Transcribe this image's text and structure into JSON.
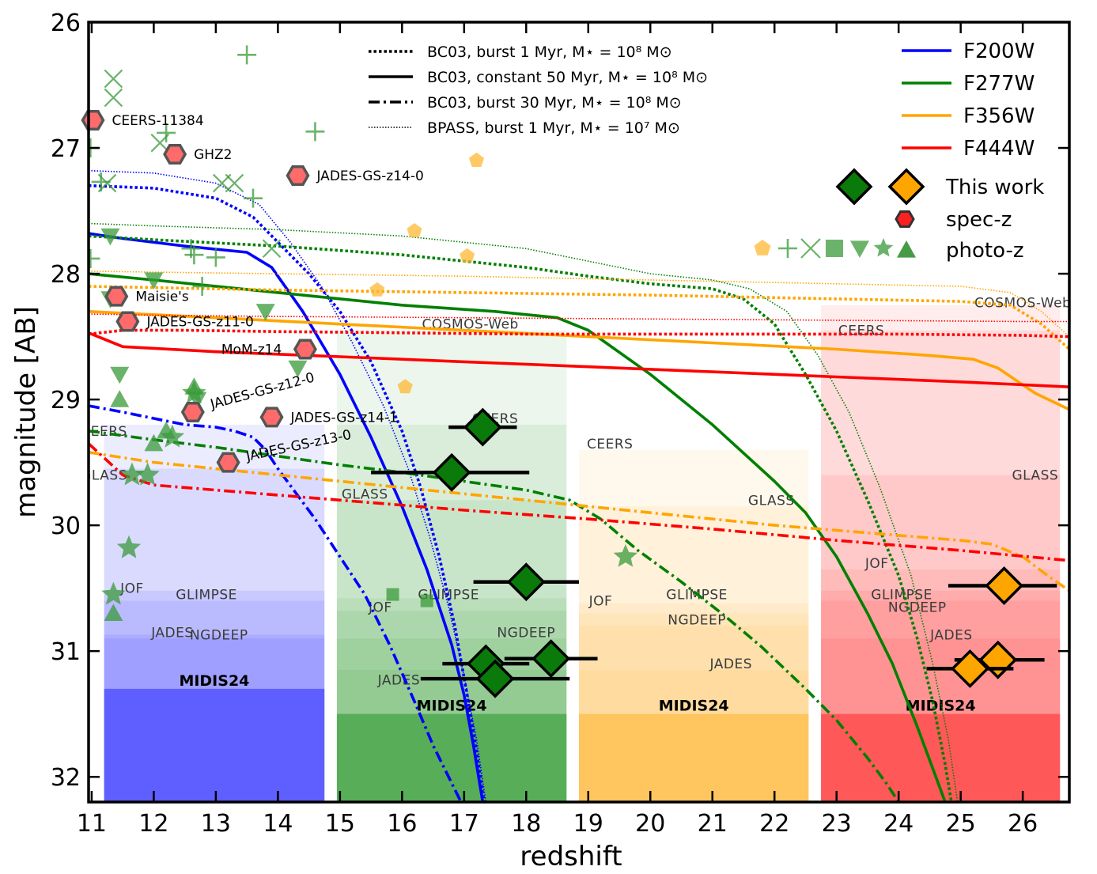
{
  "chart_data": {
    "type": "line",
    "xlabel": "redshift",
    "ylabel": "magnitude [AB]",
    "xlim": [
      10.95,
      26.75
    ],
    "ylim": [
      32.2,
      26
    ],
    "xticks": [
      11,
      12,
      13,
      14,
      15,
      16,
      17,
      18,
      19,
      20,
      21,
      22,
      23,
      24,
      25,
      26
    ],
    "yticks": [
      26,
      27,
      28,
      29,
      30,
      31,
      32
    ],
    "colors": {
      "F200W": "#0000ff",
      "F277W": "#008000",
      "F356W": "#ffa500",
      "F444W": "#ff0000"
    },
    "filter_regions": [
      {
        "filter": "F200W",
        "x0": 11.2,
        "x1": 14.75,
        "midis_depth": 31.3,
        "labels": [
          {
            "text": "CEERS",
            "x": 11.2,
            "y": 29.25
          },
          {
            "text": "GLASS",
            "x": 11.2,
            "y": 29.6
          },
          {
            "text": "JOF",
            "x": 11.65,
            "y": 30.5
          },
          {
            "text": "GLIMPSE",
            "x": 12.85,
            "y": 30.55
          },
          {
            "text": "JADES",
            "x": 12.3,
            "y": 30.85
          },
          {
            "text": "NGDEEP",
            "x": 13.05,
            "y": 30.87
          }
        ],
        "depths": [
          29.2,
          29.55,
          30.52,
          30.6,
          30.87,
          30.9
        ]
      },
      {
        "filter": "F277W",
        "x0": 14.95,
        "x1": 18.65,
        "midis_depth": 31.5,
        "labels": [
          {
            "text": "COSMOS-Web",
            "x": 17.1,
            "y": 28.4
          },
          {
            "text": "CEERS",
            "x": 17.5,
            "y": 29.15
          },
          {
            "text": "GLASS",
            "x": 15.4,
            "y": 29.75
          },
          {
            "text": "JOF",
            "x": 15.65,
            "y": 30.65
          },
          {
            "text": "GLIMPSE",
            "x": 16.75,
            "y": 30.55
          },
          {
            "text": "NGDEEP",
            "x": 18.0,
            "y": 30.85
          },
          {
            "text": "JADES",
            "x": 15.95,
            "y": 31.23
          }
        ],
        "depths": [
          28.45,
          29.2,
          29.8,
          30.58,
          30.68,
          30.9,
          31.15
        ]
      },
      {
        "filter": "F356W",
        "x0": 18.85,
        "x1": 22.55,
        "midis_depth": 31.5,
        "labels": [
          {
            "text": "CEERS",
            "x": 19.35,
            "y": 29.35
          },
          {
            "text": "GLASS",
            "x": 21.95,
            "y": 29.8
          },
          {
            "text": "JOF",
            "x": 19.2,
            "y": 30.6
          },
          {
            "text": "GLIMPSE",
            "x": 20.75,
            "y": 30.55
          },
          {
            "text": "NGDEEP",
            "x": 20.75,
            "y": 30.75
          },
          {
            "text": "JADES",
            "x": 21.3,
            "y": 31.1
          }
        ],
        "depths": [
          29.4,
          29.85,
          30.62,
          30.7,
          30.8,
          31.15
        ]
      },
      {
        "filter": "F444W",
        "x0": 22.75,
        "x1": 26.6,
        "midis_depth": 31.5,
        "labels": [
          {
            "text": "COSMOS-Web",
            "x": 26.0,
            "y": 28.23
          },
          {
            "text": "CEERS",
            "x": 23.4,
            "y": 28.45
          },
          {
            "text": "GLASS",
            "x": 26.2,
            "y": 29.6
          },
          {
            "text": "JOF",
            "x": 23.65,
            "y": 30.3
          },
          {
            "text": "GLIMPSE",
            "x": 24.05,
            "y": 30.55
          },
          {
            "text": "NGDEEP",
            "x": 24.3,
            "y": 30.65
          },
          {
            "text": "JADES",
            "x": 24.85,
            "y": 30.87
          }
        ],
        "depths": [
          28.25,
          28.45,
          29.6,
          30.35,
          30.52,
          30.6,
          30.9
        ]
      }
    ],
    "midis_label": "MIDIS24",
    "series": [
      {
        "name": "F200W constant 50 Myr",
        "filter": "F200W",
        "style": "solid",
        "x": [
          10.95,
          11.5,
          12.5,
          13.5,
          13.9,
          14.4,
          15.0,
          15.5,
          16.0,
          16.4,
          16.8,
          17.0,
          17.15,
          17.25,
          17.3
        ],
        "y": [
          27.68,
          27.72,
          27.78,
          27.83,
          27.95,
          28.3,
          28.8,
          29.3,
          29.85,
          30.35,
          30.95,
          31.35,
          31.75,
          32.05,
          32.2
        ]
      },
      {
        "name": "F200W burst 1 Myr",
        "filter": "F200W",
        "style": "dotted",
        "x": [
          10.95,
          12.0,
          13.0,
          13.6,
          14.0,
          14.5,
          15.0,
          15.5,
          16.0,
          16.3,
          16.6,
          16.85,
          17.05,
          17.2,
          17.32
        ],
        "y": [
          27.3,
          27.32,
          27.4,
          27.55,
          27.75,
          28.0,
          28.3,
          28.7,
          29.25,
          29.7,
          30.25,
          30.8,
          31.35,
          31.8,
          32.2
        ]
      },
      {
        "name": "F200W BPASS burst 1 Myr",
        "filter": "F200W",
        "style": "fine-dotted",
        "x": [
          10.95,
          12.0,
          13.0,
          13.7,
          14.2,
          14.7,
          15.2,
          15.7,
          16.1,
          16.45,
          16.75,
          17.0,
          17.2,
          17.35
        ],
        "y": [
          27.18,
          27.2,
          27.28,
          27.45,
          27.75,
          28.1,
          28.55,
          29.05,
          29.55,
          30.1,
          30.65,
          31.2,
          31.7,
          32.2
        ]
      },
      {
        "name": "F200W burst 30 Myr",
        "filter": "F200W",
        "style": "dashdot",
        "x": [
          10.95,
          11.5,
          12.0,
          12.5,
          13.0,
          13.3,
          13.6,
          13.8,
          14.0,
          14.3,
          14.6,
          15.0,
          15.4,
          15.8,
          16.2,
          16.5,
          16.75,
          16.95
        ],
        "y": [
          29.05,
          29.1,
          29.15,
          29.2,
          29.22,
          29.25,
          29.3,
          29.4,
          29.55,
          29.75,
          29.95,
          30.25,
          30.55,
          30.95,
          31.4,
          31.75,
          32.0,
          32.2
        ]
      },
      {
        "name": "F277W constant 50 Myr",
        "filter": "F277W",
        "style": "solid",
        "x": [
          10.95,
          12.0,
          14.0,
          16.0,
          17.5,
          18.5,
          19.0,
          20.0,
          21.0,
          22.0,
          22.5,
          23.0,
          23.5,
          23.9,
          24.3,
          24.6,
          24.75
        ],
        "y": [
          28.0,
          28.05,
          28.15,
          28.25,
          28.3,
          28.35,
          28.45,
          28.8,
          29.2,
          29.65,
          29.9,
          30.25,
          30.7,
          31.1,
          31.6,
          32.0,
          32.2
        ]
      },
      {
        "name": "F277W burst 1 Myr",
        "filter": "F277W",
        "style": "dotted",
        "x": [
          10.95,
          12.0,
          14.0,
          16.0,
          18.0,
          19.0,
          20.0,
          21.0,
          21.5,
          22.0,
          22.5,
          23.0,
          23.5,
          24.0,
          24.3,
          24.55,
          24.75,
          24.85
        ],
        "y": [
          27.7,
          27.73,
          27.78,
          27.85,
          27.95,
          28.02,
          28.08,
          28.12,
          28.2,
          28.4,
          28.8,
          29.25,
          29.8,
          30.4,
          30.9,
          31.4,
          31.9,
          32.2
        ]
      },
      {
        "name": "F277W BPASS burst 1 Myr",
        "filter": "F277W",
        "style": "fine-dotted",
        "x": [
          10.95,
          12.0,
          14.0,
          16.0,
          18.0,
          19.0,
          20.0,
          21.0,
          21.6,
          22.2,
          22.7,
          23.2,
          23.7,
          24.2,
          24.55,
          24.8,
          24.95
        ],
        "y": [
          27.6,
          27.62,
          27.65,
          27.7,
          27.8,
          27.9,
          28.0,
          28.05,
          28.12,
          28.3,
          28.65,
          29.1,
          29.7,
          30.4,
          31.1,
          31.7,
          32.2
        ]
      },
      {
        "name": "F277W burst 30 Myr",
        "filter": "F277W",
        "style": "dashdot",
        "x": [
          10.95,
          12.0,
          13.0,
          14.0,
          15.0,
          16.0,
          17.0,
          18.0,
          18.7,
          19.2,
          19.8,
          20.5,
          21.2,
          21.8,
          22.5,
          23.0,
          23.5,
          23.8,
          24.0
        ],
        "y": [
          29.25,
          29.32,
          29.38,
          29.45,
          29.52,
          29.58,
          29.65,
          29.72,
          29.8,
          29.95,
          30.2,
          30.45,
          30.72,
          30.97,
          31.3,
          31.55,
          31.85,
          32.05,
          32.2
        ]
      },
      {
        "name": "F356W constant 50 Myr",
        "filter": "F356W",
        "style": "solid",
        "x": [
          10.95,
          13.0,
          15.0,
          17.0,
          19.0,
          21.0,
          23.0,
          24.5,
          25.2,
          25.6,
          25.9,
          26.2,
          26.75
        ],
        "y": [
          28.3,
          28.35,
          28.4,
          28.45,
          28.5,
          28.55,
          28.6,
          28.65,
          28.68,
          28.75,
          28.85,
          28.95,
          29.08
        ]
      },
      {
        "name": "F356W burst 1 Myr",
        "filter": "F356W",
        "style": "dotted",
        "x": [
          10.95,
          14.0,
          17.0,
          20.0,
          23.0,
          25.0,
          25.8,
          26.3,
          26.75
        ],
        "y": [
          28.1,
          28.13,
          28.15,
          28.17,
          28.2,
          28.22,
          28.25,
          28.4,
          28.6
        ]
      },
      {
        "name": "F356W BPASS burst 1 Myr",
        "filter": "F356W",
        "style": "fine-dotted",
        "x": [
          10.95,
          14.0,
          17.0,
          20.0,
          23.0,
          25.0,
          25.8,
          26.3,
          26.75
        ],
        "y": [
          27.98,
          28.0,
          28.02,
          28.05,
          28.08,
          28.1,
          28.15,
          28.3,
          28.5
        ]
      },
      {
        "name": "F356W burst 30 Myr",
        "filter": "F356W",
        "style": "dashdot",
        "x": [
          10.95,
          12.0,
          14.0,
          16.0,
          18.0,
          20.0,
          22.0,
          24.0,
          25.0,
          25.5,
          26.0,
          26.4,
          26.75
        ],
        "y": [
          29.42,
          29.5,
          29.6,
          29.7,
          29.8,
          29.9,
          30.0,
          30.08,
          30.12,
          30.15,
          30.25,
          30.4,
          30.52
        ]
      },
      {
        "name": "F444W constant 50 Myr",
        "filter": "F444W",
        "style": "solid",
        "x": [
          10.95,
          11.5,
          13.0,
          15.0,
          17.0,
          19.0,
          21.0,
          23.0,
          25.0,
          26.75
        ],
        "y": [
          28.47,
          28.58,
          28.62,
          28.66,
          28.7,
          28.74,
          28.78,
          28.82,
          28.86,
          28.9
        ]
      },
      {
        "name": "F444W burst 1 Myr",
        "filter": "F444W",
        "style": "dotted",
        "x": [
          10.95,
          11.5,
          12.5,
          14.0,
          16.0,
          18.0,
          20.0,
          22.0,
          24.0,
          26.0,
          26.75
        ],
        "y": [
          28.48,
          28.45,
          28.45,
          28.46,
          28.47,
          28.48,
          28.48,
          28.48,
          28.48,
          28.49,
          28.5
        ]
      },
      {
        "name": "F444W BPASS burst 1 Myr",
        "filter": "F444W",
        "style": "fine-dotted",
        "x": [
          10.95,
          12.0,
          14.0,
          17.0,
          20.0,
          23.0,
          26.0,
          26.75
        ],
        "y": [
          28.32,
          28.33,
          28.34,
          28.35,
          28.36,
          28.37,
          28.38,
          28.38
        ]
      },
      {
        "name": "F444W burst 30 Myr",
        "filter": "F444W",
        "style": "dashdot",
        "x": [
          10.95,
          11.5,
          12.0,
          13.0,
          15.0,
          17.0,
          19.0,
          21.0,
          23.0,
          25.0,
          26.75
        ],
        "y": [
          29.35,
          29.6,
          29.68,
          29.72,
          29.8,
          29.88,
          29.95,
          30.03,
          30.12,
          30.2,
          30.28
        ]
      }
    ],
    "spec_z": [
      {
        "name": "CEERS-11384",
        "x": 11.02,
        "y": 26.78
      },
      {
        "name": "GHZ2",
        "x": 12.34,
        "y": 27.05
      },
      {
        "name": "JADES-GS-z14-0",
        "x": 14.32,
        "y": 27.22
      },
      {
        "name": "Maisie's",
        "x": 11.4,
        "y": 28.18
      },
      {
        "name": "JADES-GS-z11-0",
        "x": 11.58,
        "y": 28.38
      },
      {
        "name": "MoM-z14",
        "x": 14.44,
        "y": 28.6
      },
      {
        "name": "JADES-GS-z12-0",
        "x": 12.63,
        "y": 29.1
      },
      {
        "name": "JADES-GS-z14-1",
        "x": 13.9,
        "y": 29.14
      },
      {
        "name": "JADES-GS-z13-0",
        "x": 13.2,
        "y": 29.5
      }
    ],
    "this_work": [
      {
        "filter": "F277W",
        "x": 17.3,
        "y": 29.22,
        "xerr": [
          0.55,
          0.55
        ]
      },
      {
        "filter": "F277W",
        "x": 16.8,
        "y": 29.58,
        "xerr": [
          1.3,
          1.25
        ]
      },
      {
        "filter": "F277W",
        "x": 18.0,
        "y": 30.45,
        "xerr": [
          0.85,
          0.85
        ]
      },
      {
        "filter": "F277W",
        "x": 18.4,
        "y": 31.06,
        "xerr": [
          0.75,
          0.75
        ]
      },
      {
        "filter": "F277W",
        "x": 17.35,
        "y": 31.1,
        "xerr": [
          0.7,
          0.7
        ]
      },
      {
        "filter": "F277W",
        "x": 17.5,
        "y": 31.22,
        "xerr": [
          1.2,
          1.2
        ]
      },
      {
        "filter": "F356W",
        "x": 25.7,
        "y": 30.48,
        "xerr": [
          0.9,
          0.85
        ]
      },
      {
        "filter": "F356W",
        "x": 25.6,
        "y": 31.07,
        "xerr": [
          0.7,
          0.75
        ]
      },
      {
        "filter": "F356W",
        "x": 25.15,
        "y": 31.14,
        "xerr": [
          0.7,
          0.7
        ]
      }
    ],
    "photo_z": {
      "plus": [
        [
          13.5,
          26.26
        ],
        [
          14.6,
          26.87
        ],
        [
          12.2,
          26.88
        ],
        [
          10.98,
          27.0
        ],
        [
          11.15,
          27.27
        ],
        [
          13.6,
          27.4
        ],
        [
          12.6,
          27.8
        ],
        [
          12.65,
          27.85
        ],
        [
          13.0,
          27.87
        ],
        [
          10.98,
          27.88
        ],
        [
          12.78,
          28.1
        ]
      ],
      "x": [
        [
          11.35,
          26.45
        ],
        [
          11.35,
          26.6
        ],
        [
          12.1,
          26.96
        ],
        [
          13.1,
          27.28
        ],
        [
          13.3,
          27.28
        ],
        [
          11.25,
          27.28
        ],
        [
          13.9,
          27.8
        ]
      ],
      "tri_down": [
        [
          11.3,
          27.7
        ],
        [
          12.0,
          28.05
        ],
        [
          11.3,
          28.2
        ],
        [
          13.8,
          28.3
        ],
        [
          14.32,
          28.75
        ],
        [
          11.45,
          28.8
        ],
        [
          12.7,
          29.0
        ]
      ],
      "tri_up": [
        [
          11.45,
          29.0
        ],
        [
          12.0,
          29.35
        ],
        [
          12.2,
          29.25
        ],
        [
          12.65,
          28.9
        ],
        [
          11.35,
          30.7
        ]
      ],
      "star": [
        [
          12.65,
          28.95
        ],
        [
          12.3,
          29.3
        ],
        [
          11.65,
          29.6
        ],
        [
          11.9,
          29.6
        ],
        [
          11.6,
          30.18
        ],
        [
          11.35,
          30.55
        ],
        [
          19.6,
          30.25
        ]
      ],
      "square": [
        [
          15.85,
          30.55
        ],
        [
          16.4,
          30.6
        ]
      ],
      "pentagon": [
        [
          17.2,
          27.1
        ],
        [
          16.2,
          27.66
        ],
        [
          17.05,
          27.86
        ],
        [
          15.6,
          28.13
        ],
        [
          16.05,
          28.9
        ]
      ]
    },
    "legend": {
      "line_styles": [
        {
          "style": "dotted",
          "text": "BC03, burst 1 Myr, M⋆ = 10⁸ M⊙"
        },
        {
          "style": "solid",
          "text": "BC03, constant 50 Myr, M⋆ = 10⁸ M⊙"
        },
        {
          "style": "dashdot",
          "text": "BC03, burst 30 Myr, M⋆ = 10⁸ M⊙"
        },
        {
          "style": "fine-dotted",
          "text": "BPASS, burst 1 Myr, M⋆ = 10⁷ M⊙"
        }
      ],
      "filters": [
        "F200W",
        "F277W",
        "F356W",
        "F444W"
      ],
      "symbols": [
        {
          "key": "this-work",
          "text": "This work"
        },
        {
          "key": "spec-z",
          "text": "spec-z"
        },
        {
          "key": "photo-z",
          "text": "photo-z"
        }
      ]
    }
  }
}
